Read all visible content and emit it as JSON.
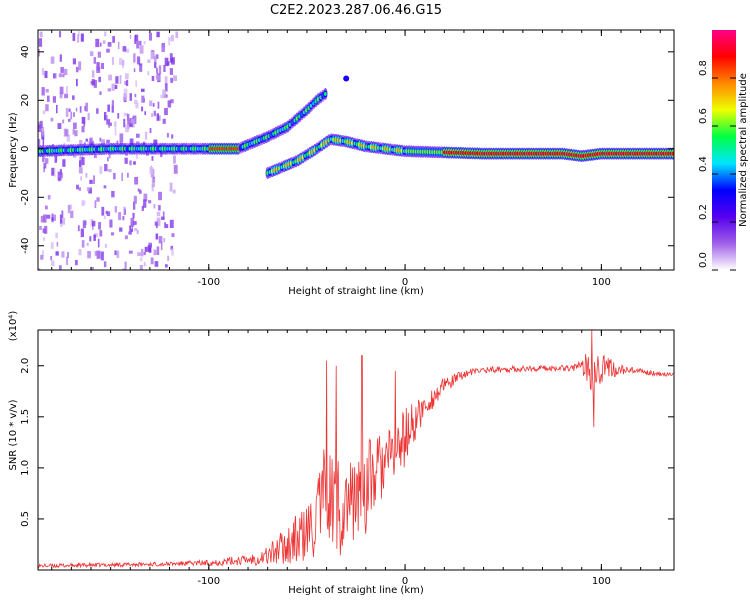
{
  "figure": {
    "title": "C2E2.2023.287.06.46.G15",
    "colors": {
      "line": "#ee3333",
      "frame": "#000000"
    }
  },
  "chart_data": [
    {
      "type": "heatmap",
      "name": "spectrogram",
      "xlabel": "Height of straight line (km)",
      "ylabel": "Frequency (Hz)",
      "xlim": [
        -187,
        137
      ],
      "ylim": [
        -50,
        49
      ],
      "xticks": [
        -100,
        0,
        100
      ],
      "yticks": [
        -40,
        -20,
        0,
        20,
        40
      ],
      "colorbar": {
        "label": "Normalized spectral amplitude",
        "range": [
          0,
          1
        ],
        "ticks": [
          "0.0",
          "0.2",
          "0.4",
          "0.6",
          "0.8"
        ],
        "tick_values": [
          0,
          0.2,
          0.4,
          0.6,
          0.8
        ],
        "colormap": [
          "#ffffff",
          "#9f5fe8",
          "#5500ee",
          "#0000ff",
          "#00e5ff",
          "#00ff44",
          "#eeff00",
          "#ff8800",
          "#ff0000",
          "#ff0088"
        ]
      },
      "main_ridge": [
        [
          -187,
          -1
        ],
        [
          -150,
          0
        ],
        [
          -120,
          0
        ],
        [
          -100,
          0
        ],
        [
          -85,
          0
        ],
        [
          -70,
          5
        ],
        [
          -60,
          9
        ],
        [
          -50,
          16
        ],
        [
          -45,
          20
        ],
        [
          -40,
          23
        ]
      ],
      "secondary_ridge": [
        [
          -70,
          -10
        ],
        [
          -55,
          -5
        ],
        [
          -45,
          0
        ],
        [
          -38,
          4
        ],
        [
          -30,
          3
        ],
        [
          -20,
          1
        ],
        [
          -10,
          0
        ],
        [
          0,
          -1
        ],
        [
          40,
          -2
        ],
        [
          80,
          -2
        ],
        [
          90,
          -3
        ],
        [
          100,
          -2
        ],
        [
          137,
          -2
        ]
      ],
      "amplitude_notes": "noise scatter for heights < -120 km; peak amplitude ~0.9 along secondary ridge from 20 to 137 km"
    },
    {
      "type": "line",
      "name": "snr",
      "xlabel": "Height of straight line (km)",
      "ylabel": "SNR (10 * v/v)",
      "yscale_label": "(x10⁴)",
      "xlim": [
        -187,
        137
      ],
      "ylim": [
        0,
        2.35
      ],
      "xticks": [
        -100,
        0,
        100
      ],
      "yticks": [
        "0.5",
        "1.0",
        "1.5",
        "2.0"
      ],
      "ytick_values": [
        0.5,
        1.0,
        1.5,
        2.0
      ],
      "envelope": {
        "x": [
          -187,
          -150,
          -120,
          -100,
          -80,
          -70,
          -60,
          -50,
          -45,
          -40,
          -35,
          -30,
          -25,
          -20,
          -15,
          -10,
          -5,
          0,
          10,
          20,
          30,
          40,
          60,
          80,
          90,
          95,
          100,
          105,
          110,
          120,
          137
        ],
        "y": [
          0.04,
          0.05,
          0.06,
          0.07,
          0.1,
          0.14,
          0.25,
          0.35,
          0.5,
          0.7,
          0.6,
          0.65,
          0.7,
          0.8,
          0.95,
          1.05,
          1.15,
          1.3,
          1.6,
          1.8,
          1.92,
          1.96,
          1.97,
          1.98,
          1.99,
          2.0,
          1.98,
          1.97,
          1.96,
          1.94,
          1.91
        ],
        "amp": [
          0.02,
          0.02,
          0.02,
          0.03,
          0.05,
          0.1,
          0.2,
          0.3,
          0.4,
          0.6,
          0.6,
          0.4,
          0.4,
          0.5,
          0.4,
          0.3,
          0.3,
          0.3,
          0.12,
          0.08,
          0.04,
          0.03,
          0.03,
          0.03,
          0.05,
          0.3,
          0.15,
          0.1,
          0.05,
          0.03,
          0.02
        ]
      },
      "spikes": [
        [
          -40,
          2.05
        ],
        [
          -35,
          2.0
        ],
        [
          -22,
          2.1
        ],
        [
          -5,
          1.95
        ],
        [
          95,
          2.35
        ],
        [
          96,
          1.4
        ]
      ]
    }
  ]
}
